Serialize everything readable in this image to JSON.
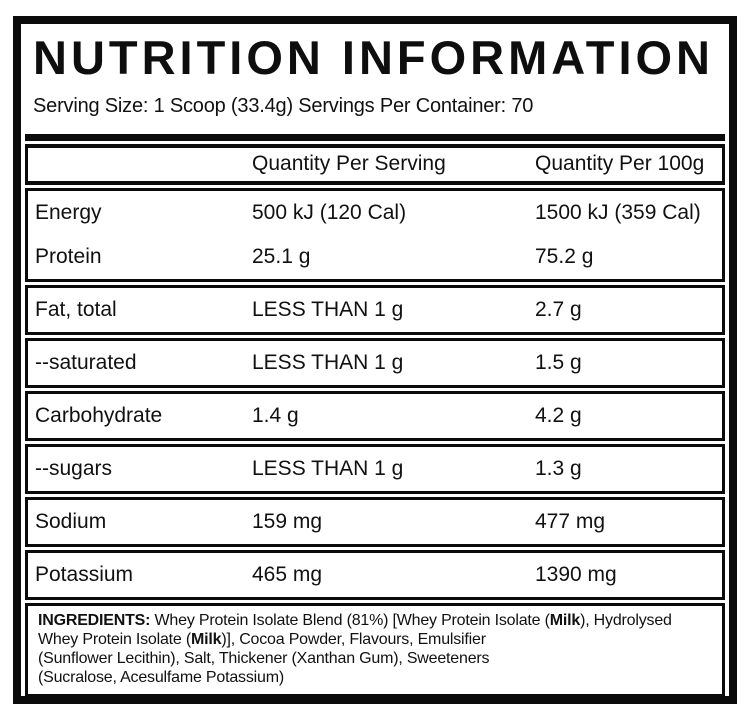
{
  "header": {
    "title": "NUTRITION INFORMATION",
    "serving_size": "Serving Size: 1 Scoop (33.4g)",
    "servings_per_container": "Servings Per Container: 70"
  },
  "table": {
    "columns": [
      "",
      "Quantity Per Serving",
      "Quantity Per 100g"
    ],
    "groups": [
      {
        "rows": [
          {
            "label": "Energy",
            "per_serving": "500 kJ (120 Cal)",
            "per_100g": "1500 kJ (359 Cal)"
          },
          {
            "label": "Protein",
            "per_serving": "25.1 g",
            "per_100g": "75.2 g"
          }
        ]
      },
      {
        "rows": [
          {
            "label": "Fat, total",
            "per_serving": "LESS THAN 1 g",
            "per_100g": "2.7 g"
          }
        ]
      },
      {
        "rows": [
          {
            "label": "--saturated",
            "per_serving": "LESS THAN 1 g",
            "per_100g": "1.5 g"
          }
        ]
      },
      {
        "rows": [
          {
            "label": "Carbohydrate",
            "per_serving": "1.4 g",
            "per_100g": "4.2 g"
          }
        ]
      },
      {
        "rows": [
          {
            "label": "--sugars",
            "per_serving": "LESS THAN 1 g",
            "per_100g": "1.3 g"
          }
        ]
      },
      {
        "rows": [
          {
            "label": "Sodium",
            "per_serving": "159 mg",
            "per_100g": "477 mg"
          }
        ]
      },
      {
        "rows": [
          {
            "label": "Potassium",
            "per_serving": "465 mg",
            "per_100g": "1390 mg"
          }
        ]
      }
    ]
  },
  "ingredients": {
    "lines": [
      [
        {
          "t": "INGREDIENTS:",
          "b": true
        },
        {
          "t": " Whey Protein Isolate Blend (81%) [Whey Protein Isolate (",
          "b": false
        },
        {
          "t": "Milk",
          "b": true
        },
        {
          "t": "), Hydrolysed",
          "b": false
        }
      ],
      [
        {
          "t": "Whey Protein Isolate (",
          "b": false
        },
        {
          "t": "Milk",
          "b": true
        },
        {
          "t": ")], Cocoa Powder, Flavours, Emulsifier",
          "b": false
        }
      ],
      [
        {
          "t": "(Sunflower Lecithin), Salt, Thickener (Xanthan Gum), Sweeteners",
          "b": false
        }
      ],
      [
        {
          "t": "(Sucralose, Acesulfame Potassium)",
          "b": false
        }
      ]
    ]
  },
  "colors": {
    "border": "#0b0b0b",
    "text": "#111111",
    "background": "#ffffff"
  }
}
